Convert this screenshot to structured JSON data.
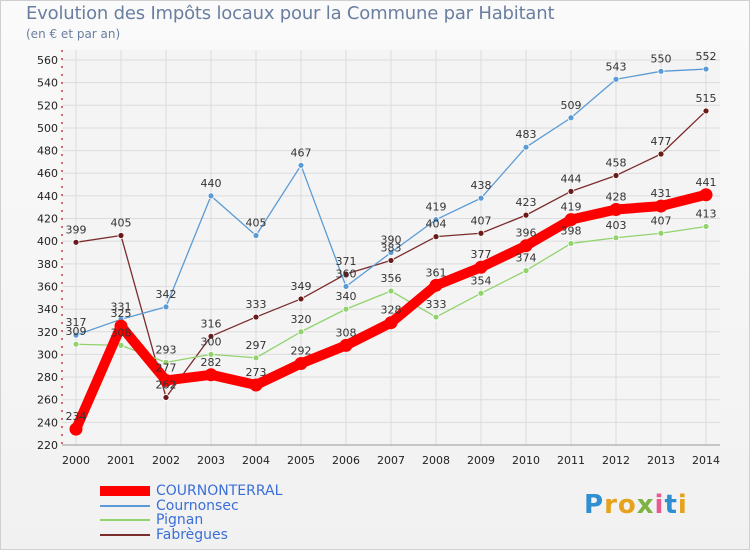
{
  "chart_data": {
    "type": "line",
    "title": "Evolution des Impôts locaux pour la Commune par Habitant",
    "subtitle": "(en € et par an)",
    "xlabel": "",
    "ylabel": "",
    "categories": [
      "2000",
      "2001",
      "2002",
      "2003",
      "2004",
      "2005",
      "2006",
      "2007",
      "2008",
      "2009",
      "2010",
      "2011",
      "2012",
      "2013",
      "2014"
    ],
    "ylim": [
      220,
      560
    ],
    "yticks": [
      220,
      240,
      260,
      280,
      300,
      320,
      340,
      360,
      380,
      400,
      420,
      440,
      460,
      480,
      500,
      520,
      540,
      560
    ],
    "grid": true,
    "series": [
      {
        "name": "COURNONTERRAL",
        "color": "#ff0000",
        "values": [
          234,
          325,
          277,
          282,
          273,
          292,
          308,
          328,
          361,
          377,
          396,
          419,
          428,
          431,
          441
        ]
      },
      {
        "name": "Cournonsec",
        "color": "#5b9bd5",
        "values": [
          317,
          331,
          342,
          440,
          405,
          467,
          360,
          390,
          419,
          438,
          483,
          509,
          543,
          550,
          552
        ]
      },
      {
        "name": "Pignan",
        "color": "#92d36e",
        "values": [
          309,
          308,
          293,
          300,
          297,
          320,
          340,
          356,
          333,
          354,
          374,
          398,
          403,
          407,
          413
        ]
      },
      {
        "name": "Fabrègues",
        "color": "#7b2c2c",
        "values": [
          399,
          405,
          262,
          316,
          333,
          349,
          371,
          383,
          404,
          407,
          423,
          444,
          458,
          477,
          515
        ]
      }
    ]
  },
  "logo": {
    "text": "Proxiti",
    "letters": [
      "P",
      "r",
      "o",
      "x",
      "i",
      "t",
      "i"
    ]
  }
}
